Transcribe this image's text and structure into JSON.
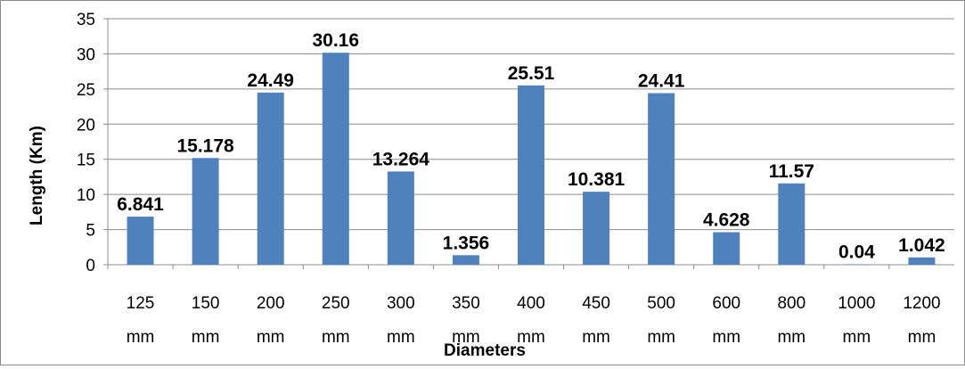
{
  "chart_data": {
    "type": "bar",
    "categories": [
      [
        "125",
        "mm"
      ],
      [
        "150",
        "mm"
      ],
      [
        "200",
        "mm"
      ],
      [
        "250",
        "mm"
      ],
      [
        "300",
        "mm"
      ],
      [
        "350",
        "mm"
      ],
      [
        "400",
        "mm"
      ],
      [
        "450",
        "mm"
      ],
      [
        "500",
        "mm"
      ],
      [
        "600",
        "mm"
      ],
      [
        "800",
        "mm"
      ],
      [
        "1000",
        "mm"
      ],
      [
        "1200",
        "mm"
      ]
    ],
    "values": [
      6.841,
      15.178,
      24.49,
      30.16,
      13.264,
      1.356,
      25.51,
      10.381,
      24.41,
      4.628,
      11.57,
      0.04,
      1.042
    ],
    "data_labels": [
      "6.841",
      "15.178",
      "24.49",
      "30.16",
      "13.264",
      "1.356",
      "25.51",
      "10.381",
      "24.41",
      "4.628",
      "11.57",
      "0.04",
      "1.042"
    ],
    "title": "",
    "xlabel": "Diameters",
    "ylabel": "Length (Km)",
    "ylim": [
      0,
      35
    ],
    "yticks": [
      "0",
      "5",
      "10",
      "15",
      "20",
      "25",
      "30",
      "35"
    ],
    "grid": true,
    "legend": "none",
    "bar_color": "#4f81bd",
    "grid_color": "#8c8c8c"
  }
}
